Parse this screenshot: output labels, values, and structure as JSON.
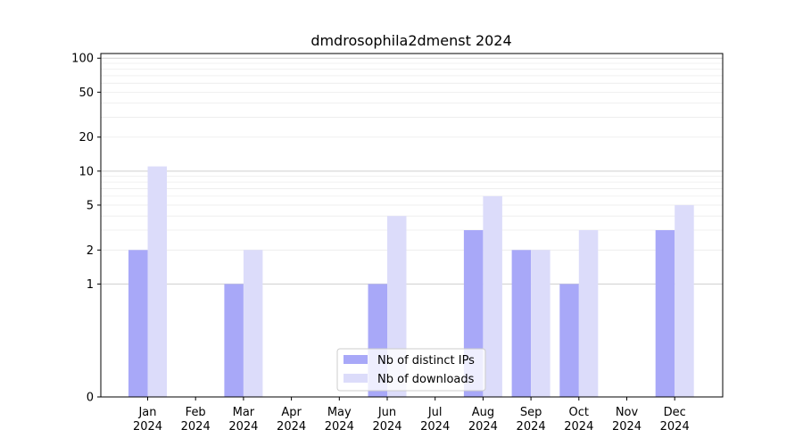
{
  "chart_data": {
    "type": "bar",
    "title": "dmdrosophila2dmenst 2024",
    "xlabel": "",
    "ylabel": "",
    "yscale": "symlog",
    "ylim": [
      0,
      110
    ],
    "yticks": [
      0,
      1,
      2,
      5,
      10,
      20,
      50,
      100
    ],
    "categories": [
      [
        "Jan",
        "2024"
      ],
      [
        "Feb",
        "2024"
      ],
      [
        "Mar",
        "2024"
      ],
      [
        "Apr",
        "2024"
      ],
      [
        "May",
        "2024"
      ],
      [
        "Jun",
        "2024"
      ],
      [
        "Jul",
        "2024"
      ],
      [
        "Aug",
        "2024"
      ],
      [
        "Sep",
        "2024"
      ],
      [
        "Oct",
        "2024"
      ],
      [
        "Nov",
        "2024"
      ],
      [
        "Dec",
        "2024"
      ]
    ],
    "series": [
      {
        "name": "Nb of distinct IPs",
        "color": "#a8a8f8",
        "values": [
          2,
          0,
          1,
          0,
          0,
          1,
          0,
          3,
          2,
          1,
          0,
          3
        ]
      },
      {
        "name": "Nb of downloads",
        "color": "#dcdcfa",
        "values": [
          11,
          0,
          2,
          0,
          0,
          4,
          0,
          6,
          2,
          3,
          0,
          5
        ]
      }
    ],
    "grid": true,
    "legend_position": "bottom-center"
  }
}
